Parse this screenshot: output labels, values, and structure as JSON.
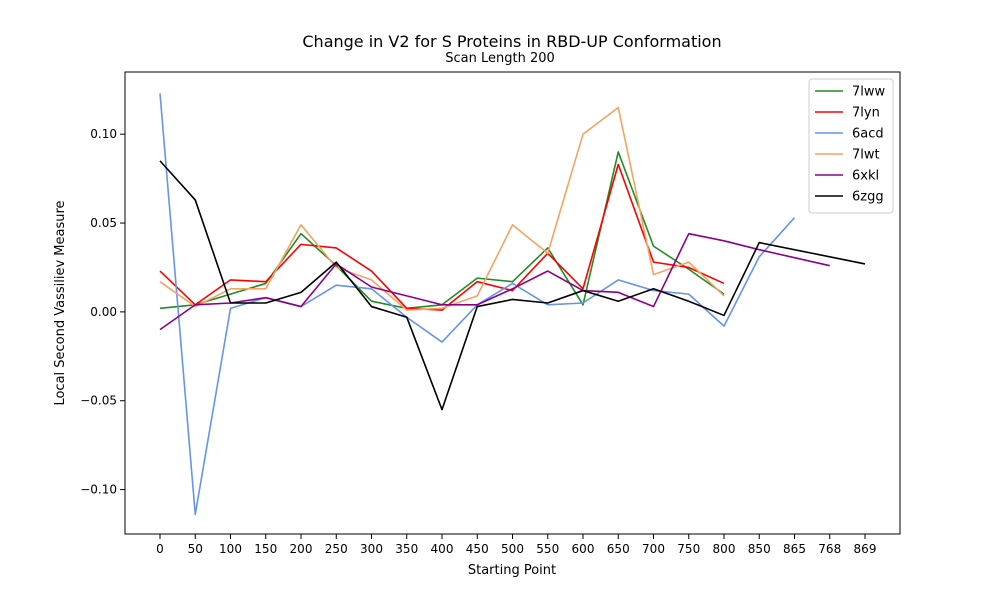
{
  "chart_data": {
    "type": "line",
    "title": "Change in V2 for S Proteins in RBD-UP Conformation",
    "subtitle": "Scan Length 200",
    "xlabel": "Starting Point",
    "ylabel": "Local Second Vassiliev Measure",
    "x_tick_labels": [
      "0",
      "50",
      "100",
      "150",
      "200",
      "250",
      "300",
      "350",
      "400",
      "450",
      "500",
      "550",
      "600",
      "650",
      "700",
      "750",
      "800",
      "850",
      "865",
      "768",
      "869"
    ],
    "ylim": [
      -0.125,
      0.135
    ],
    "y_ticks": [
      -0.1,
      -0.05,
      0.0,
      0.05,
      0.1
    ],
    "y_tick_labels": [
      "−0.10",
      "−0.05",
      "0.00",
      "0.05",
      "0.10"
    ],
    "grid": false,
    "legend_position": "top-right",
    "series": [
      {
        "name": "7lww",
        "color": "#228b22",
        "values": [
          0.002,
          0.004,
          0.01,
          0.016,
          0.044,
          0.026,
          0.006,
          0.002,
          0.004,
          0.019,
          0.017,
          0.036,
          0.004,
          0.09,
          0.037,
          0.024,
          0.01
        ]
      },
      {
        "name": "7lyn",
        "color": "#ff0000",
        "values": [
          0.023,
          0.004,
          0.018,
          0.017,
          0.038,
          0.036,
          0.023,
          0.002,
          0.001,
          0.017,
          0.012,
          0.033,
          0.013,
          0.083,
          0.028,
          0.025,
          0.016
        ]
      },
      {
        "name": "6acd",
        "color": "#6495ed",
        "values": [
          0.123,
          -0.114,
          0.002,
          0.008,
          0.003,
          0.015,
          0.013,
          -0.003,
          -0.017,
          0.004,
          0.016,
          0.004,
          0.005,
          0.018,
          0.012,
          0.01,
          -0.008,
          0.031,
          0.053
        ]
      },
      {
        "name": "7lwt",
        "color": "#f4a460",
        "values": [
          0.017,
          0.003,
          0.013,
          0.013,
          0.049,
          0.025,
          0.018,
          0.001,
          0.002,
          0.009,
          0.049,
          0.033,
          0.1,
          0.115,
          0.021,
          0.028,
          0.009
        ]
      },
      {
        "name": "6xkl",
        "color": "#8b008b",
        "values": [
          -0.01,
          0.004,
          0.005,
          0.008,
          0.003,
          0.027,
          0.014,
          0.009,
          0.004,
          0.004,
          0.013,
          0.023,
          0.012,
          0.011,
          0.003,
          0.044,
          0.04,
          0.035,
          null,
          0.026
        ]
      },
      {
        "name": "6zgg",
        "color": "#000000",
        "values": [
          0.085,
          0.063,
          0.005,
          0.005,
          0.011,
          0.028,
          0.003,
          -0.003,
          -0.055,
          0.003,
          0.007,
          0.005,
          0.012,
          0.006,
          0.013,
          0.006,
          -0.002,
          0.039,
          null,
          null,
          0.027
        ]
      }
    ]
  }
}
